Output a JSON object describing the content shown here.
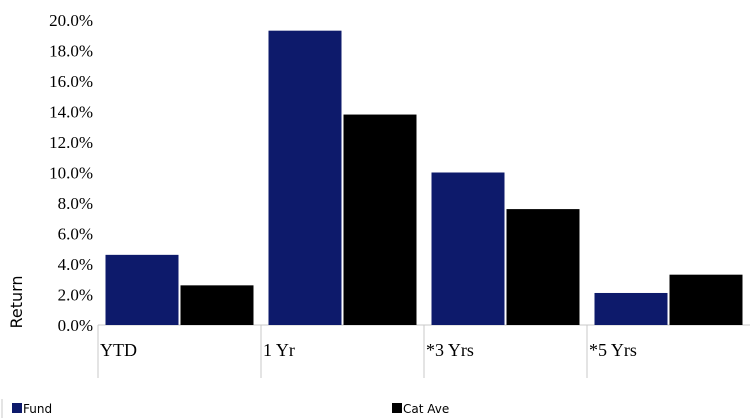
{
  "chart_data": {
    "type": "bar",
    "title": "",
    "xlabel": "",
    "ylabel": "Return",
    "categories": [
      "YTD",
      "1 Yr",
      "*3 Yrs",
      "*5 Yrs"
    ],
    "series": [
      {
        "name": "Fund",
        "color": "#0d1a6b",
        "values": [
          4.6,
          19.3,
          10.0,
          2.1
        ]
      },
      {
        "name": "Cat Ave",
        "color": "#000000",
        "values": [
          2.6,
          13.8,
          7.6,
          3.3
        ]
      }
    ],
    "ylim": [
      0,
      20
    ],
    "yticks": [
      "0.0%",
      "2.0%",
      "4.0%",
      "6.0%",
      "8.0%",
      "10.0%",
      "12.0%",
      "14.0%",
      "16.0%",
      "18.0%",
      "20.0%"
    ],
    "grid": false,
    "legend_position": "bottom"
  }
}
